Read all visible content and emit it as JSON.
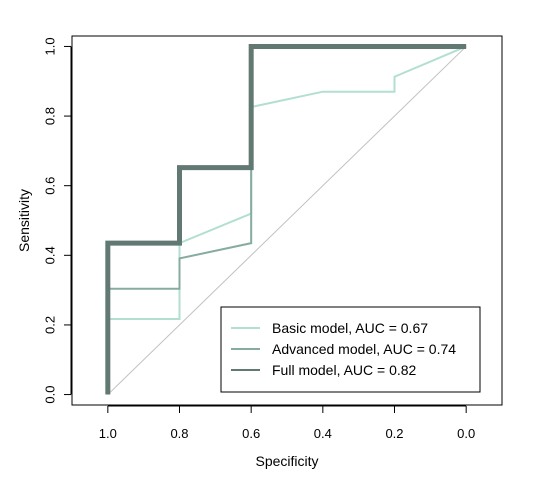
{
  "chart_data": {
    "type": "line",
    "subtype": "roc",
    "xlabel": "Specificity",
    "ylabel": "Sensitivity",
    "x_reversed": true,
    "xlim": [
      1.1,
      -0.1
    ],
    "ylim": [
      -0.03,
      1.03
    ],
    "x_ticks": [
      1.0,
      0.8,
      0.6,
      0.4,
      0.2,
      0.0
    ],
    "x_tick_labels": [
      "1.0",
      "0.8",
      "0.6",
      "0.4",
      "0.2",
      "0.0"
    ],
    "y_ticks": [
      0.0,
      0.2,
      0.4,
      0.6,
      0.8,
      1.0
    ],
    "y_tick_labels": [
      "0.0",
      "0.2",
      "0.4",
      "0.6",
      "0.8",
      "1.0"
    ],
    "grid": false,
    "reference_line": {
      "from": [
        1.0,
        0.0
      ],
      "to": [
        0.0,
        1.0
      ],
      "color": "#c0c0c0"
    },
    "legend_position": "bottom-right",
    "series": [
      {
        "name": "Basic model, AUC = 0.67",
        "color": "#b2dfd2",
        "line_width": 2,
        "points": [
          [
            1.0,
            0.0
          ],
          [
            1.0,
            0.217
          ],
          [
            0.8,
            0.217
          ],
          [
            0.8,
            0.435
          ],
          [
            0.6,
            0.52
          ],
          [
            0.6,
            0.826
          ],
          [
            0.4,
            0.87
          ],
          [
            0.2,
            0.87
          ],
          [
            0.2,
            0.913
          ],
          [
            0.0,
            1.0
          ]
        ]
      },
      {
        "name": "Advanced model, AUC = 0.74",
        "color": "#86aba1",
        "line_width": 2,
        "points": [
          [
            1.0,
            0.0
          ],
          [
            1.0,
            0.304
          ],
          [
            0.8,
            0.304
          ],
          [
            0.8,
            0.391
          ],
          [
            0.6,
            0.435
          ],
          [
            0.6,
            1.0
          ],
          [
            0.0,
            1.0
          ]
        ]
      },
      {
        "name": "Full model, AUC = 0.82",
        "color": "#627872",
        "line_width": 5,
        "points": [
          [
            1.0,
            0.0
          ],
          [
            1.0,
            0.435
          ],
          [
            0.8,
            0.435
          ],
          [
            0.8,
            0.652
          ],
          [
            0.6,
            0.652
          ],
          [
            0.6,
            1.0
          ],
          [
            0.0,
            1.0
          ]
        ]
      }
    ]
  }
}
